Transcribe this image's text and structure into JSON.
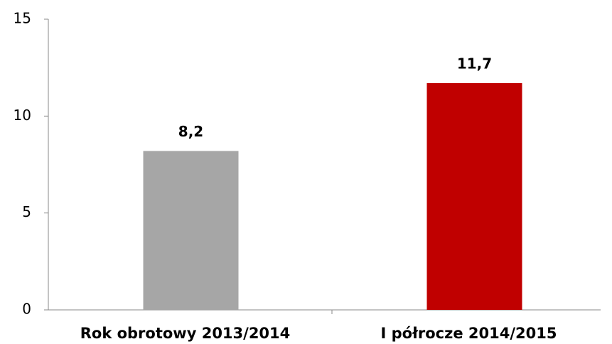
{
  "chart_data": {
    "type": "bar",
    "categories": [
      "Rok obrotowy 2013/2014",
      "I półrocze 2014/2015"
    ],
    "values": [
      8.2,
      11.7
    ],
    "value_labels": [
      "8,2",
      "11,7"
    ],
    "colors": [
      "#a6a6a6",
      "#c00000"
    ],
    "ylim": [
      0,
      15
    ],
    "yticks": [
      0,
      5,
      10,
      15
    ],
    "grid": false
  }
}
